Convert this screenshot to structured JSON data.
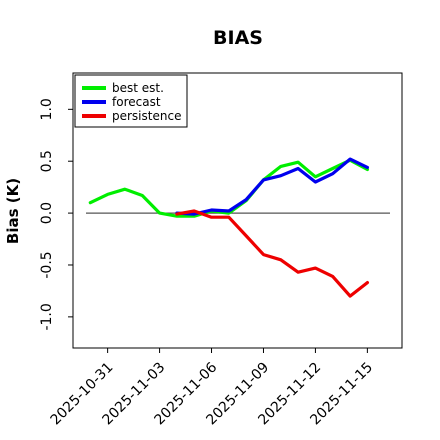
{
  "chart_data": {
    "type": "line",
    "title": "BIAS",
    "xlabel": "",
    "ylabel": "Bias (K)",
    "ylim": [
      -1.3,
      1.35
    ],
    "xlim": [
      "2025-10-29",
      "2025-11-17"
    ],
    "grid": false,
    "legend_position": "top-left",
    "zero_line": true,
    "y_ticks": [
      {
        "value": -1.0,
        "label": "-1.0"
      },
      {
        "value": -0.5,
        "label": "-0.5"
      },
      {
        "value": 0.0,
        "label": "0.0"
      },
      {
        "value": 0.5,
        "label": "0.5"
      },
      {
        "value": 1.0,
        "label": "1.0"
      }
    ],
    "x_ticks": [
      {
        "date": "2025-10-31",
        "label": "2025-10-31",
        "color": "#000000"
      },
      {
        "date": "2025-11-03",
        "label": "2025-11-03",
        "color": "#000000"
      },
      {
        "date": "2025-11-06",
        "label": "2025-11-06",
        "color": "#1a8a1a"
      },
      {
        "date": "2025-11-09",
        "label": "2025-11-09",
        "color": "#000000"
      },
      {
        "date": "2025-11-12",
        "label": "2025-11-12",
        "color": "#000000"
      },
      {
        "date": "2025-11-15",
        "label": "2025-11-15",
        "color": "#000000"
      }
    ],
    "series": [
      {
        "name": "best est.",
        "color": "#00ee00",
        "points": [
          {
            "x": "2025-10-30",
            "y": 0.1
          },
          {
            "x": "2025-10-31",
            "y": 0.18
          },
          {
            "x": "2025-11-01",
            "y": 0.23
          },
          {
            "x": "2025-11-02",
            "y": 0.17
          },
          {
            "x": "2025-11-03",
            "y": 0.0
          },
          {
            "x": "2025-11-04",
            "y": -0.03
          },
          {
            "x": "2025-11-05",
            "y": -0.03
          },
          {
            "x": "2025-11-06",
            "y": 0.02
          },
          {
            "x": "2025-11-07",
            "y": 0.0
          },
          {
            "x": "2025-11-08",
            "y": 0.12
          },
          {
            "x": "2025-11-09",
            "y": 0.32
          },
          {
            "x": "2025-11-10",
            "y": 0.45
          },
          {
            "x": "2025-11-11",
            "y": 0.49
          },
          {
            "x": "2025-11-12",
            "y": 0.35
          },
          {
            "x": "2025-11-13",
            "y": 0.43
          },
          {
            "x": "2025-11-14",
            "y": 0.51
          },
          {
            "x": "2025-11-15",
            "y": 0.42
          }
        ]
      },
      {
        "name": "forecast",
        "color": "#0000ee",
        "points": [
          {
            "x": "2025-11-04",
            "y": 0.0
          },
          {
            "x": "2025-11-05",
            "y": -0.01
          },
          {
            "x": "2025-11-06",
            "y": 0.03
          },
          {
            "x": "2025-11-07",
            "y": 0.02
          },
          {
            "x": "2025-11-08",
            "y": 0.13
          },
          {
            "x": "2025-11-09",
            "y": 0.32
          },
          {
            "x": "2025-11-10",
            "y": 0.36
          },
          {
            "x": "2025-11-11",
            "y": 0.43
          },
          {
            "x": "2025-11-12",
            "y": 0.3
          },
          {
            "x": "2025-11-13",
            "y": 0.38
          },
          {
            "x": "2025-11-14",
            "y": 0.52
          },
          {
            "x": "2025-11-15",
            "y": 0.44
          }
        ]
      },
      {
        "name": "persistence",
        "color": "#ee0000",
        "points": [
          {
            "x": "2025-11-04",
            "y": -0.01
          },
          {
            "x": "2025-11-05",
            "y": 0.02
          },
          {
            "x": "2025-11-06",
            "y": -0.04
          },
          {
            "x": "2025-11-07",
            "y": -0.04
          },
          {
            "x": "2025-11-08",
            "y": -0.22
          },
          {
            "x": "2025-11-09",
            "y": -0.4
          },
          {
            "x": "2025-11-10",
            "y": -0.45
          },
          {
            "x": "2025-11-11",
            "y": -0.57
          },
          {
            "x": "2025-11-12",
            "y": -0.53
          },
          {
            "x": "2025-11-13",
            "y": -0.61
          },
          {
            "x": "2025-11-14",
            "y": -0.8
          },
          {
            "x": "2025-11-15",
            "y": -0.67
          }
        ]
      }
    ]
  }
}
